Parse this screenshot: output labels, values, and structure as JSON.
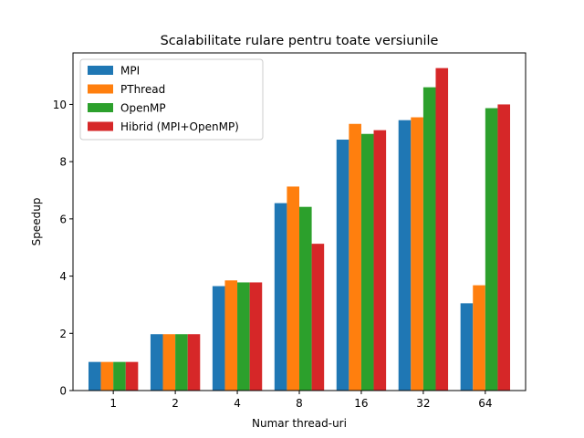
{
  "chart_data": {
    "type": "bar",
    "title": "Scalabilitate rulare pentru toate versiunile",
    "xlabel": "Numar thread-uri",
    "ylabel": "Speedup",
    "categories": [
      "1",
      "2",
      "4",
      "8",
      "16",
      "32",
      "64"
    ],
    "series": [
      {
        "name": "MPI",
        "color": "#1f77b4",
        "values": [
          1.0,
          1.97,
          3.65,
          6.55,
          8.77,
          9.45,
          3.05
        ]
      },
      {
        "name": "PThread",
        "color": "#ff7f0e",
        "values": [
          1.0,
          1.97,
          3.85,
          7.13,
          9.32,
          9.55,
          3.68
        ]
      },
      {
        "name": "OpenMP",
        "color": "#2ca02c",
        "values": [
          1.0,
          1.97,
          3.78,
          6.42,
          8.97,
          10.6,
          9.87
        ]
      },
      {
        "name": "Hibrid (MPI+OpenMP)",
        "color": "#d62728",
        "values": [
          1.0,
          1.97,
          3.78,
          5.13,
          9.1,
          11.27,
          10.0
        ]
      }
    ],
    "ylim": [
      0,
      11.8
    ],
    "yticks": [
      0,
      2,
      4,
      6,
      8,
      10
    ],
    "grid": false,
    "legend_position": "top-left"
  }
}
